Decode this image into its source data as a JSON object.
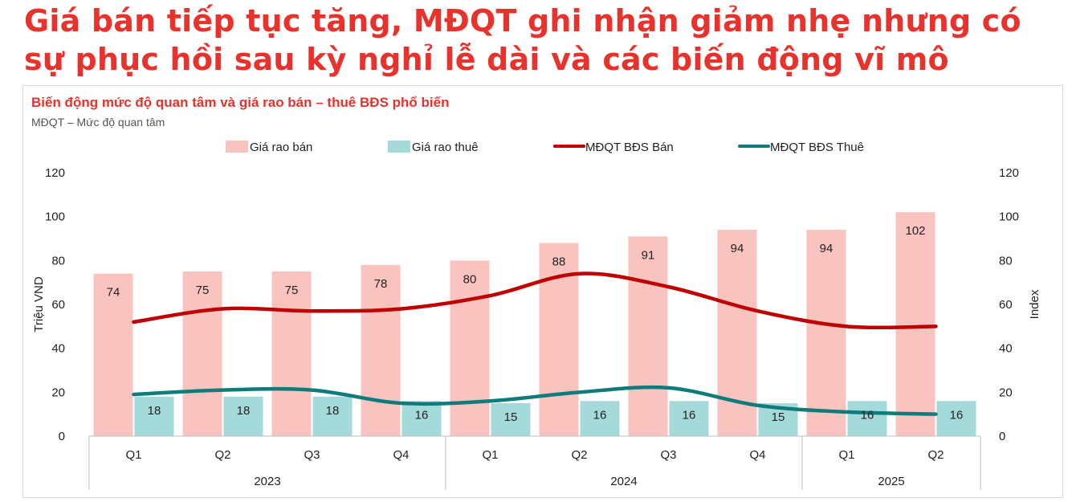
{
  "headline": "Giá bán tiếp tục tăng, MĐQT ghi nhận giảm nhẹ nhưng có sự phục hồi sau kỳ nghỉ lễ dài và các biến động vĩ mô",
  "colors": {
    "headline": "#e8322b",
    "title": "#e8322b",
    "subtitle": "#555555",
    "bar_sale": "#f9c3c0",
    "bar_rent": "#a5dadb",
    "line_sale": "#c00000",
    "line_rent": "#0e7c7b",
    "axis": "#bfbfbf"
  },
  "chart_data": {
    "type": "bar",
    "title": "Biến động mức độ quan tâm và giá rao bán – thuê BĐS phổ biến",
    "subtitle": "MĐQT – Mức độ quan tâm",
    "categories": [
      "Q1",
      "Q2",
      "Q3",
      "Q4",
      "Q1",
      "Q2",
      "Q3",
      "Q4",
      "Q1",
      "Q2"
    ],
    "years": [
      {
        "label": "2023",
        "count": 4
      },
      {
        "label": "2024",
        "count": 4
      },
      {
        "label": "2025",
        "count": 2
      }
    ],
    "series": [
      {
        "name": "Giá rao bán",
        "kind": "bar",
        "axis": "left",
        "values": [
          74,
          75,
          75,
          78,
          80,
          88,
          91,
          94,
          94,
          102
        ]
      },
      {
        "name": "Giá rao thuê",
        "kind": "bar",
        "axis": "left",
        "values": [
          18,
          18,
          18,
          16,
          15,
          16,
          16,
          15,
          16,
          16
        ]
      },
      {
        "name": "MĐQT BĐS Bán",
        "kind": "line",
        "axis": "right",
        "values": [
          52,
          58,
          57,
          58,
          64,
          74,
          68,
          57,
          50,
          50
        ]
      },
      {
        "name": "MĐQT BĐS Thuê",
        "kind": "line",
        "axis": "right",
        "values": [
          19,
          21,
          21,
          15,
          16,
          20,
          22,
          14,
          11,
          10
        ]
      }
    ],
    "ylabel": "Triệu VND",
    "y2label": "Index",
    "ylim": [
      0,
      120
    ],
    "y2lim": [
      0,
      120
    ],
    "yticks": [
      0,
      20,
      40,
      60,
      80,
      100,
      120
    ],
    "legend_position": "top-center",
    "grid": false
  }
}
